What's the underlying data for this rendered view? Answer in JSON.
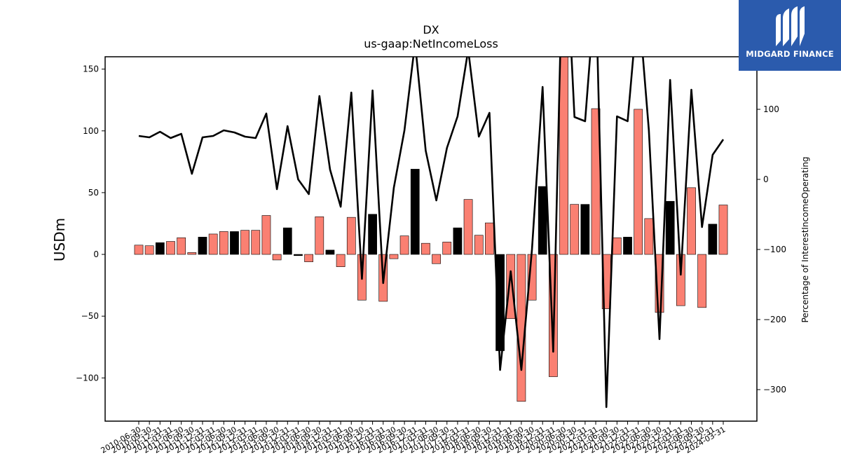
{
  "chart_data": {
    "type": "bar+line",
    "title": "DX",
    "subtitle": "us-gaap:NetIncomeLoss",
    "ylabel": "USDm",
    "ylabel_right": "Percentage of InterestIncomeOperating",
    "ylim": [
      -135,
      160
    ],
    "ylim_right": [
      -345,
      175
    ],
    "yticks": [
      -100,
      -50,
      0,
      50,
      100,
      150
    ],
    "yticks_right": [
      -300,
      -200,
      -100,
      0,
      100
    ],
    "bar_color_positive_growth": "#fa8072",
    "bar_color_other": "#000000",
    "categories": [
      "2010-06-30",
      "2010-09-30",
      "2010-12-31",
      "2011-03-31",
      "2011-06-30",
      "2011-09-30",
      "2011-12-31",
      "2012-03-31",
      "2012-06-30",
      "2012-09-30",
      "2012-12-31",
      "2013-03-31",
      "2013-06-30",
      "2013-09-30",
      "2013-12-31",
      "2014-03-31",
      "2014-06-30",
      "2014-09-30",
      "2014-12-31",
      "2015-03-31",
      "2015-06-30",
      "2015-09-30",
      "2015-12-31",
      "2016-03-31",
      "2016-06-30",
      "2016-09-30",
      "2016-12-31",
      "2017-03-31",
      "2017-06-30",
      "2017-09-30",
      "2017-12-31",
      "2018-03-31",
      "2018-06-30",
      "2018-09-30",
      "2018-12-31",
      "2019-03-31",
      "2019-06-30",
      "2019-09-30",
      "2019-12-31",
      "2020-03-31",
      "2020-06-30",
      "2020-09-30",
      "2020-12-31",
      "2021-03-31",
      "2021-06-30",
      "2021-09-30",
      "2021-12-31",
      "2022-03-31",
      "2022-06-30",
      "2022-09-30",
      "2022-12-31",
      "2023-03-31",
      "2023-06-30",
      "2023-09-30",
      "2023-12-31",
      "2024-03-31"
    ],
    "values": [
      7.5,
      7,
      9.5,
      10.5,
      13.5,
      1.5,
      14,
      16.5,
      18.5,
      18.5,
      19.5,
      19.5,
      31.5,
      -4.5,
      21.5,
      -1,
      -6,
      30.5,
      3.5,
      -10,
      30,
      -37,
      32.5,
      -38,
      -3.5,
      15,
      69,
      9,
      -7.5,
      10,
      21.5,
      44.5,
      15.5,
      25.5,
      -78,
      -52,
      -119,
      -37,
      55,
      -99,
      160,
      40.5,
      40.5,
      118,
      -44,
      13.5,
      14,
      117.5,
      29,
      -47,
      43,
      -41.5,
      54,
      -43,
      24.5,
      40
    ],
    "bar_colors": [
      "#fa8072",
      "#fa8072",
      "#000000",
      "#fa8072",
      "#fa8072",
      "#fa8072",
      "#000000",
      "#fa8072",
      "#fa8072",
      "#000000",
      "#fa8072",
      "#fa8072",
      "#fa8072",
      "#fa8072",
      "#000000",
      "#000000",
      "#fa8072",
      "#fa8072",
      "#000000",
      "#fa8072",
      "#fa8072",
      "#fa8072",
      "#000000",
      "#fa8072",
      "#fa8072",
      "#fa8072",
      "#000000",
      "#fa8072",
      "#fa8072",
      "#fa8072",
      "#000000",
      "#fa8072",
      "#fa8072",
      "#fa8072",
      "#000000",
      "#fa8072",
      "#fa8072",
      "#fa8072",
      "#000000",
      "#fa8072",
      "#fa8072",
      "#fa8072",
      "#000000",
      "#fa8072",
      "#fa8072",
      "#fa8072",
      "#000000",
      "#fa8072",
      "#fa8072",
      "#fa8072",
      "#000000",
      "#fa8072",
      "#fa8072",
      "#fa8072",
      "#000000",
      "#fa8072"
    ],
    "line_values": [
      62,
      60,
      68,
      59,
      65,
      8,
      60,
      62,
      70,
      67,
      61,
      59,
      94,
      -14,
      76,
      0,
      -21,
      119,
      14,
      -39,
      124,
      -142,
      127,
      -148,
      -12,
      70,
      195,
      41,
      -30,
      45,
      90,
      185,
      61,
      95,
      -272,
      -131,
      -272,
      -100,
      132,
      -246,
      400,
      89,
      83,
      280,
      -325,
      90,
      83,
      257,
      70,
      -228,
      142,
      -136,
      128,
      -68,
      35,
      57
    ],
    "line_color": "#000000"
  },
  "logo": {
    "text": "MIDGARD FINANCE",
    "bg_color": "#2b5bad"
  }
}
